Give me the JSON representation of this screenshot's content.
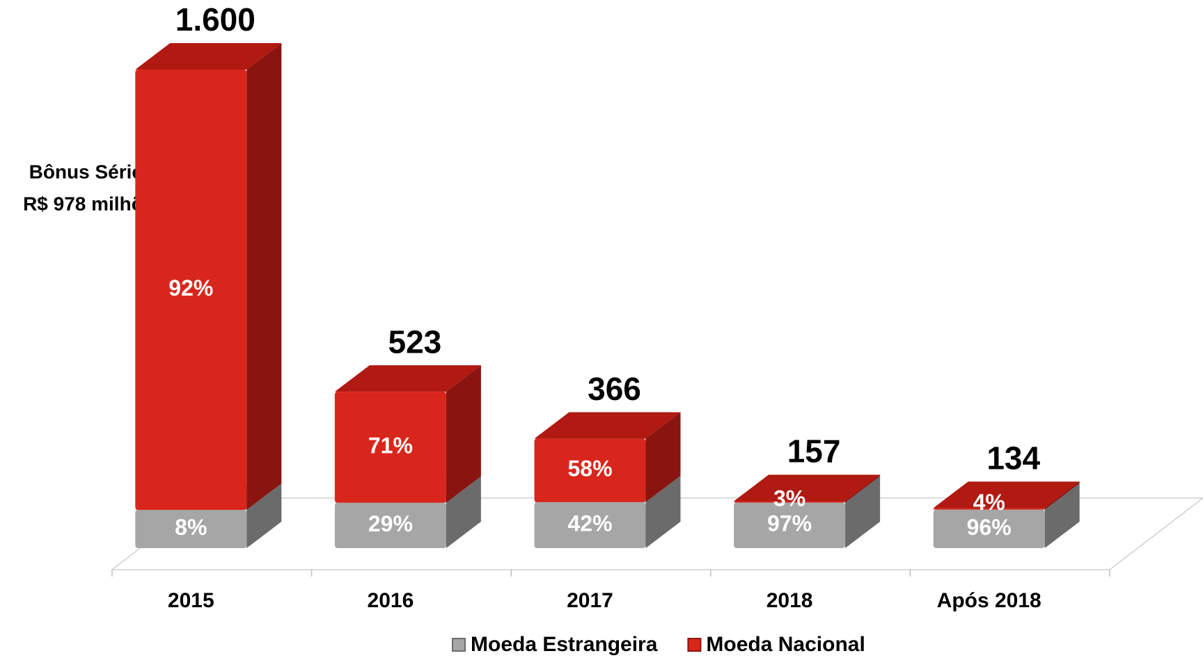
{
  "chart_data": {
    "type": "bar3d_stacked",
    "categories": [
      "2015",
      "2016",
      "2017",
      "2018",
      "Após 2018"
    ],
    "series": [
      {
        "name": "Moeda Estrangeira",
        "color": "#a6a6a6",
        "side_color": "#6b6b6b",
        "top_color": "#8c8c8c",
        "values": [
          8,
          29,
          42,
          97,
          96
        ]
      },
      {
        "name": "Moeda Nacional",
        "color": "#d9261c",
        "side_color": "#8a1510",
        "top_color": "#b01a12",
        "values": [
          92,
          71,
          58,
          3,
          4
        ]
      }
    ],
    "totals": {
      "values": [
        1600,
        523,
        366,
        157,
        134
      ],
      "value_labels": [
        "1.600",
        "523",
        "366",
        "157",
        "134"
      ]
    },
    "annotation": [
      "Bônus Série 8",
      "R$ 978 milhões"
    ]
  }
}
